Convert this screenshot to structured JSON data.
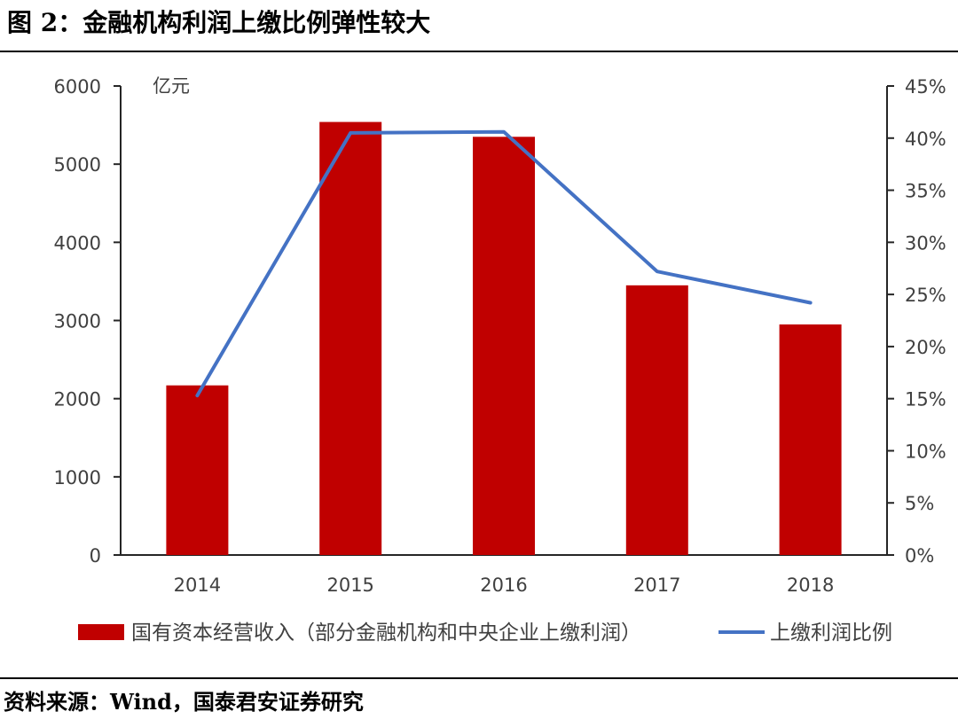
{
  "figure": {
    "title": "图 2：金融机构利润上缴比例弹性较大",
    "source": "资料来源：Wind，国泰君安证券研究"
  },
  "chart_data": {
    "type": "bar",
    "categories": [
      "2014",
      "2015",
      "2016",
      "2017",
      "2018"
    ],
    "series": [
      {
        "name": "国有资本经营收入（部分金融机构和中央企业上缴利润）",
        "kind": "bar",
        "axis": "left",
        "color": "#c00000",
        "values": [
          2170,
          5540,
          5350,
          3450,
          2950
        ]
      },
      {
        "name": "上缴利润比例",
        "kind": "line",
        "axis": "right",
        "color": "#4472c4",
        "values": [
          15.3,
          40.5,
          40.6,
          27.2,
          24.2
        ]
      }
    ],
    "ylabel": "亿元",
    "ylim": [
      0,
      6000
    ],
    "yticks": [
      "0",
      "1000",
      "2000",
      "3000",
      "4000",
      "5000",
      "6000"
    ],
    "y2lim": [
      0,
      45
    ],
    "y2ticks": [
      "0%",
      "5%",
      "10%",
      "15%",
      "20%",
      "25%",
      "30%",
      "35%",
      "40%",
      "45%"
    ],
    "grid": false,
    "legend": "bottom"
  }
}
